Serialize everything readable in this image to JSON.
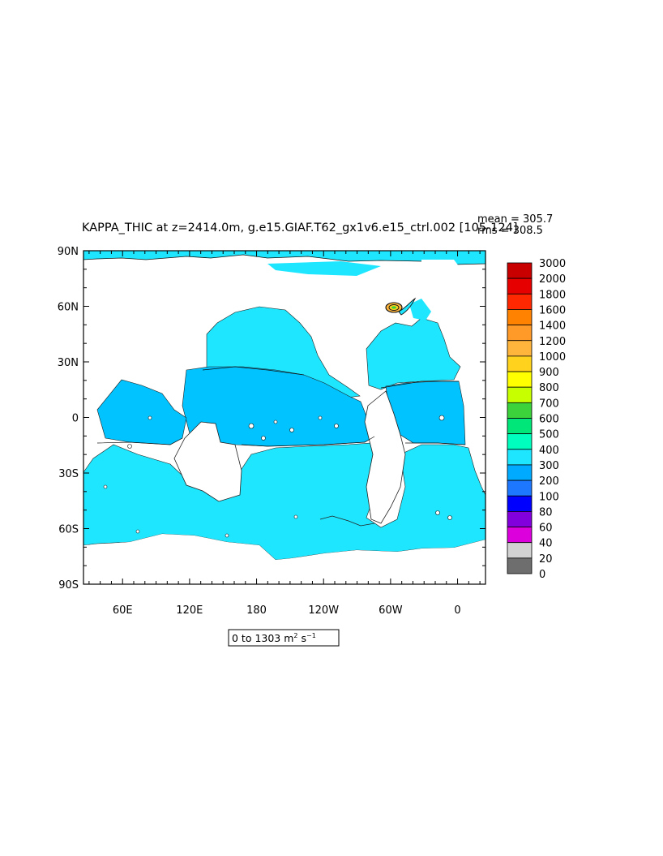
{
  "chart_data": {
    "type": "heatmap",
    "title": "KAPPA_THIC at z=2414.0m, g.e15.GIAF.T62_gx1v6.e15_ctrl.002 [105-124]",
    "stats": {
      "mean": "mean = 305.7",
      "rms": "rms = 308.5"
    },
    "range_label": "0 to 1303 m",
    "range_units_tail": " s",
    "x_ticks": [
      "60E",
      "120E",
      "180",
      "120W",
      "60W",
      "0"
    ],
    "x_tick_lons": [
      60,
      120,
      180,
      240,
      300,
      360
    ],
    "y_ticks": [
      "90N",
      "60N",
      "30N",
      "0",
      "30S",
      "60S",
      "90S"
    ],
    "y_tick_lats": [
      90,
      60,
      30,
      0,
      -30,
      -60,
      -90
    ],
    "xlim_lon": [
      25,
      385
    ],
    "ylim_lat": [
      -90,
      90
    ],
    "colorbar": {
      "levels": [
        "3000",
        "2000",
        "1800",
        "1600",
        "1400",
        "1200",
        "1000",
        "900",
        "800",
        "700",
        "600",
        "500",
        "400",
        "300",
        "200",
        "100",
        "80",
        "60",
        "40",
        "20",
        "0"
      ],
      "colors": [
        "#c80000",
        "#e60000",
        "#ff2800",
        "#ff8200",
        "#ff9a28",
        "#ffb43c",
        "#ffd21e",
        "#ffff00",
        "#c8ff00",
        "#3cd23c",
        "#00e678",
        "#00ffbe",
        "#1ee6ff",
        "#00aaff",
        "#1e78ff",
        "#0000ff",
        "#8200dc",
        "#dc00dc",
        "#d2d2d2",
        "#6e6e6e"
      ]
    },
    "colors": {
      "land": "#ffffff",
      "ocean_300_400": "#1ee6ff",
      "ocean_200_300": "#00c3ff"
    }
  }
}
